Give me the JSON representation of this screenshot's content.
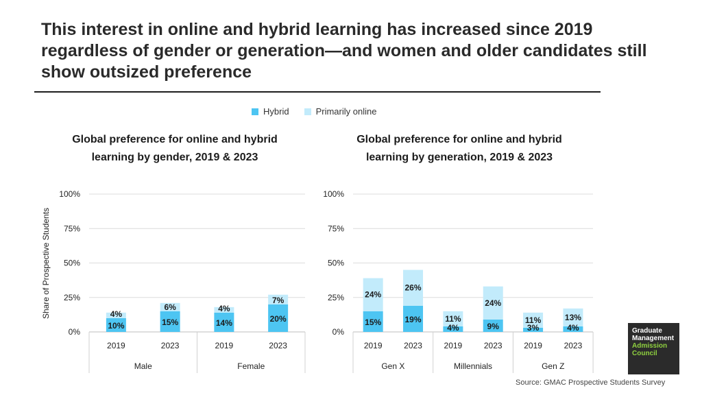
{
  "title": "This interest in online and hybrid learning has increased since 2019 regardless of gender or generation—and women and older candidates still show outsized preference",
  "legend": {
    "hybrid": "Hybrid",
    "online": "Primarily online"
  },
  "colors": {
    "hybrid": "#4dc5f2",
    "online": "#c2ebfb",
    "grid": "#dcdcdc",
    "text": "#1c1c1c"
  },
  "chart_data": [
    {
      "type": "bar",
      "stacked": true,
      "title": "Global preference for online and hybrid learning by gender, 2019 & 2023",
      "ylabel": "Share of Prospective Students",
      "ylim": [
        0,
        100
      ],
      "yticks": [
        "0%",
        "25%",
        "50%",
        "75%",
        "100%"
      ],
      "groups": [
        "Male",
        "Female"
      ],
      "categories": [
        "2019",
        "2023",
        "2019",
        "2023"
      ],
      "series": [
        {
          "name": "Hybrid",
          "values": [
            10,
            15,
            14,
            20
          ],
          "labels": [
            "10%",
            "15%",
            "14%",
            "20%"
          ]
        },
        {
          "name": "Primarily online",
          "values": [
            4,
            6,
            4,
            7
          ],
          "labels": [
            "4%",
            "6%",
            "4%",
            "7%"
          ]
        }
      ]
    },
    {
      "type": "bar",
      "stacked": true,
      "title": "Global preference for online and hybrid learning by generation, 2019 & 2023",
      "ylim": [
        0,
        100
      ],
      "yticks": [
        "0%",
        "25%",
        "50%",
        "75%",
        "100%"
      ],
      "groups": [
        "Gen X",
        "Millennials",
        "Gen Z"
      ],
      "categories": [
        "2019",
        "2023",
        "2019",
        "2023",
        "2019",
        "2023"
      ],
      "series": [
        {
          "name": "Hybrid",
          "values": [
            15,
            19,
            4,
            9,
            3,
            4
          ],
          "labels": [
            "15%",
            "19%",
            "4%",
            "9%",
            "3%",
            "4%"
          ]
        },
        {
          "name": "Primarily online",
          "values": [
            24,
            26,
            11,
            24,
            11,
            13
          ],
          "labels": [
            "24%",
            "26%",
            "11%",
            "24%",
            "11%",
            "13%"
          ]
        }
      ]
    }
  ],
  "logo": {
    "line1": "Graduate",
    "line2": "Management",
    "line3": "Admission",
    "line4": "Council",
    "colors": {
      "top": "#ffffff",
      "bottom": "#8fd13f"
    }
  },
  "source": "Source: GMAC Prospective Students Survey"
}
